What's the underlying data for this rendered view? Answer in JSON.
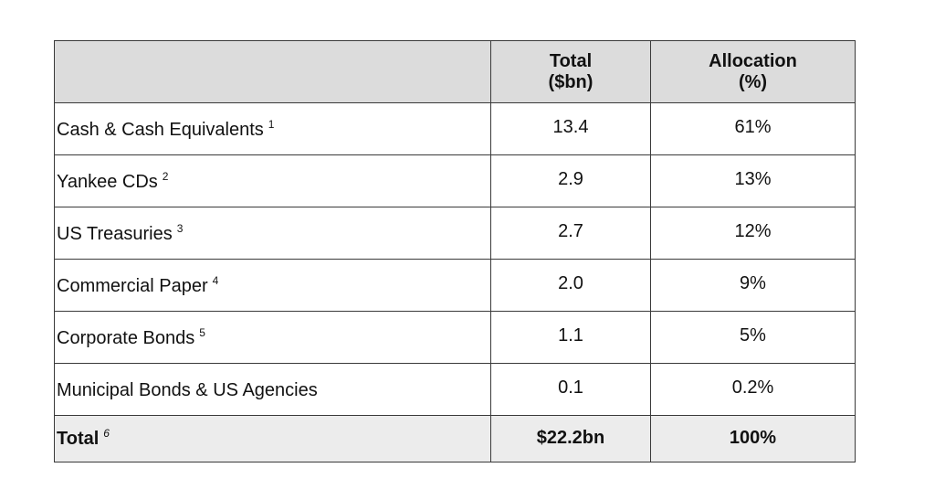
{
  "table": {
    "headers": {
      "label": "",
      "total_line1": "Total",
      "total_line2": "($bn)",
      "allocation_line1": "Allocation",
      "allocation_line2": "(%)"
    },
    "rows": [
      {
        "label": "Cash & Cash Equivalents",
        "footnote": "1",
        "total": "13.4",
        "allocation": "61%"
      },
      {
        "label": "Yankee CDs",
        "footnote": "2",
        "total": "2.9",
        "allocation": "13%"
      },
      {
        "label": "US Treasuries",
        "footnote": "3",
        "total": "2.7",
        "allocation": "12%"
      },
      {
        "label": "Commercial Paper",
        "footnote": "4",
        "total": "2.0",
        "allocation": "9%"
      },
      {
        "label": "Corporate Bonds",
        "footnote": "5",
        "total": "1.1",
        "allocation": "5%"
      },
      {
        "label": "Municipal Bonds & US Agencies",
        "footnote": "",
        "total": "0.1",
        "allocation": "0.2%"
      }
    ],
    "total_row": {
      "label": "Total",
      "footnote": "6",
      "total": "$22.2bn",
      "allocation": "100%"
    }
  },
  "colors": {
    "header_bg": "#dcdcdc",
    "total_bg": "#ececec",
    "border": "#3a3a3a"
  }
}
